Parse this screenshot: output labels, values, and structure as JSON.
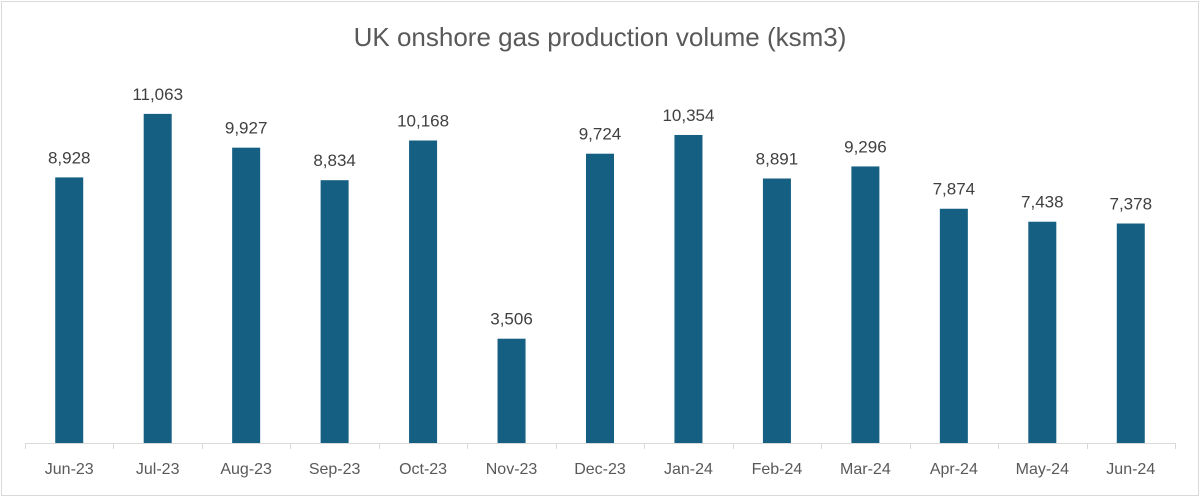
{
  "chart_data": {
    "type": "bar",
    "title": "UK onshore gas production volume (ksm3)",
    "categories": [
      "Jun-23",
      "Jul-23",
      "Aug-23",
      "Sep-23",
      "Oct-23",
      "Nov-23",
      "Dec-23",
      "Jan-24",
      "Feb-24",
      "Mar-24",
      "Apr-24",
      "May-24",
      "Jun-24"
    ],
    "values": [
      8928,
      11063,
      9927,
      8834,
      10168,
      3506,
      9724,
      10354,
      8891,
      9296,
      7874,
      7438,
      7378
    ],
    "data_labels": [
      "8,928",
      "11,063",
      "9,927",
      "8,834",
      "10,168",
      "3,506",
      "9,724",
      "10,354",
      "8,891",
      "9,296",
      "7,874",
      "7,438",
      "7,378"
    ],
    "xlabel": "",
    "ylabel": "",
    "ylim": [
      0,
      12000
    ],
    "grid": false,
    "legend": "none",
    "bar_color": "#155f82"
  }
}
